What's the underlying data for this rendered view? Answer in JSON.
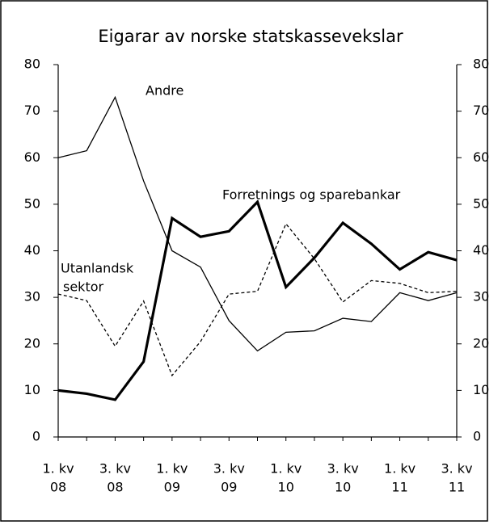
{
  "chart_data": {
    "type": "line",
    "title": "Eigarar av norske statskassevekslar",
    "categories": [
      [
        "1. kv",
        "08"
      ],
      null,
      [
        "3. kv",
        "08"
      ],
      null,
      [
        "1. kv",
        "09"
      ],
      null,
      [
        "3. kv",
        "09"
      ],
      null,
      [
        "1. kv",
        "10"
      ],
      null,
      [
        "3. kv",
        "10"
      ],
      null,
      [
        "1. kv",
        "11"
      ],
      null,
      [
        "3. kv",
        "11"
      ]
    ],
    "series": [
      {
        "name": "Andre",
        "color": "#000000",
        "line_width": 1.3,
        "dash": "none",
        "values": [
          60,
          61.5,
          73,
          55,
          40,
          36.5,
          25,
          18.5,
          22.5,
          22.8,
          25.5,
          24.8,
          31,
          29.3,
          31
        ]
      },
      {
        "name": "Forretnings og sparebankar",
        "color": "#000000",
        "line_width": 3.2,
        "dash": "none",
        "values": [
          10,
          9.3,
          8,
          16.2,
          47,
          43,
          44.2,
          50.5,
          32.2,
          38.5,
          46,
          41.5,
          36,
          39.7,
          38
        ]
      },
      {
        "name": [
          "Utanlandsk",
          "sektor"
        ],
        "color": "#000000",
        "line_width": 1.3,
        "dash": "4 3",
        "values": [
          30.7,
          29.3,
          19.5,
          29.2,
          13.2,
          20.5,
          30.7,
          31.3,
          45.8,
          38.3,
          29,
          33.6,
          33,
          31,
          31.3
        ]
      }
    ],
    "ylim": [
      0,
      80
    ],
    "yticks": [
      0,
      10,
      20,
      30,
      40,
      50,
      60,
      70,
      80
    ],
    "y2lim": [
      0,
      80
    ],
    "y2ticks": [
      0,
      10,
      20,
      30,
      40,
      50,
      60,
      70,
      80
    ],
    "grid": false
  }
}
